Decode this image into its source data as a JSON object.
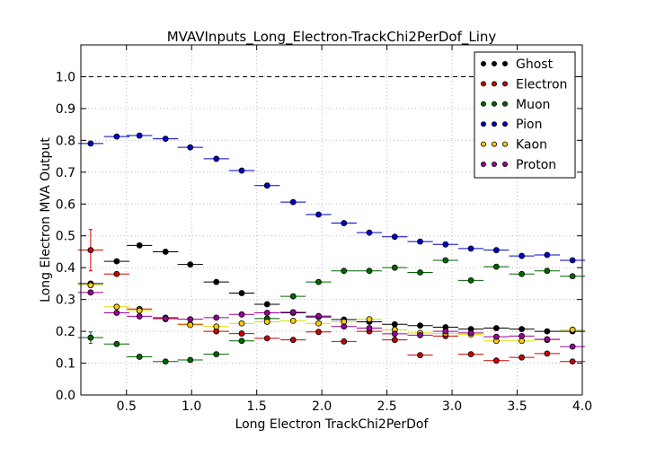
{
  "chart_data": {
    "type": "scatter",
    "title": "MVAVInputs_Long_Electron-TrackChi2PerDof_Liny",
    "xlabel": "Long Electron TrackChi2PerDof",
    "ylabel": "Long Electron MVA Output",
    "xlim": [
      0.15,
      4.0
    ],
    "ylim": [
      0.0,
      1.1
    ],
    "xticks": [
      0.5,
      1.0,
      1.5,
      2.0,
      2.5,
      3.0,
      3.5,
      4.0
    ],
    "xtick_labels": [
      "0.5",
      "1.0",
      "1.5",
      "2.0",
      "2.5",
      "3.0",
      "3.5",
      "4.0"
    ],
    "yticks": [
      0.0,
      0.1,
      0.2,
      0.3,
      0.4,
      0.5,
      0.6,
      0.7,
      0.8,
      0.9,
      1.0
    ],
    "ytick_labels": [
      "0.0",
      "0.1",
      "0.2",
      "0.3",
      "0.4",
      "0.5",
      "0.6",
      "0.7",
      "0.8",
      "0.9",
      "1.0"
    ],
    "grid": true,
    "reference_line": {
      "y": 1.0,
      "style": "dashed"
    },
    "legend_position": "top-right",
    "x": [
      0.225,
      0.425,
      0.6,
      0.8,
      0.99,
      1.19,
      1.385,
      1.58,
      1.78,
      1.975,
      2.17,
      2.365,
      2.56,
      2.755,
      2.95,
      3.145,
      3.34,
      3.535,
      3.73,
      3.925
    ],
    "x_halfwidth": 0.0975,
    "series": [
      {
        "name": "Ghost",
        "color": "#000000",
        "face": "#000000",
        "values": [
          0.35,
          0.42,
          0.47,
          0.45,
          0.41,
          0.355,
          0.32,
          0.285,
          0.258,
          0.245,
          0.237,
          0.23,
          0.222,
          0.218,
          0.213,
          0.207,
          0.21,
          0.207,
          0.2,
          0.2
        ]
      },
      {
        "name": "Electron",
        "color": "#cc0000",
        "face": "#cc0000",
        "values": [
          0.455,
          0.38,
          0.27,
          0.243,
          0.222,
          0.2,
          0.193,
          0.178,
          0.173,
          0.198,
          0.168,
          0.2,
          0.173,
          0.125,
          0.185,
          0.128,
          0.108,
          0.118,
          0.13,
          0.105
        ],
        "errors": [
          0.065,
          0,
          0,
          0,
          0,
          0,
          0,
          0,
          0,
          0,
          0,
          0,
          0,
          0,
          0,
          0,
          0,
          0,
          0,
          0
        ]
      },
      {
        "name": "Muon",
        "color": "#006600",
        "face": "#006600",
        "values": [
          0.18,
          0.16,
          0.12,
          0.105,
          0.11,
          0.128,
          0.17,
          0.24,
          0.31,
          0.355,
          0.39,
          0.39,
          0.4,
          0.385,
          0.423,
          0.36,
          0.403,
          0.38,
          0.39,
          0.373
        ],
        "errors": [
          0.018,
          0,
          0,
          0,
          0,
          0,
          0,
          0,
          0,
          0,
          0,
          0,
          0,
          0,
          0,
          0,
          0,
          0,
          0,
          0
        ]
      },
      {
        "name": "Pion",
        "color": "#0000cc",
        "face": "#0000cc",
        "values": [
          0.79,
          0.812,
          0.815,
          0.805,
          0.778,
          0.742,
          0.705,
          0.658,
          0.606,
          0.567,
          0.54,
          0.51,
          0.497,
          0.482,
          0.473,
          0.46,
          0.455,
          0.437,
          0.44,
          0.423
        ]
      },
      {
        "name": "Kaon",
        "color": "#dddd00",
        "face": "#ffcc00",
        "values": [
          0.345,
          0.277,
          0.265,
          0.238,
          0.22,
          0.215,
          0.225,
          0.23,
          0.233,
          0.225,
          0.23,
          0.238,
          0.205,
          0.195,
          0.193,
          0.19,
          0.17,
          0.17,
          0.173,
          0.205
        ]
      },
      {
        "name": "Proton",
        "color": "#990099",
        "face": "#990099",
        "values": [
          0.322,
          0.258,
          0.247,
          0.24,
          0.238,
          0.243,
          0.253,
          0.258,
          0.26,
          0.248,
          0.215,
          0.21,
          0.192,
          0.188,
          0.2,
          0.195,
          0.183,
          0.185,
          0.175,
          0.152
        ]
      }
    ]
  }
}
